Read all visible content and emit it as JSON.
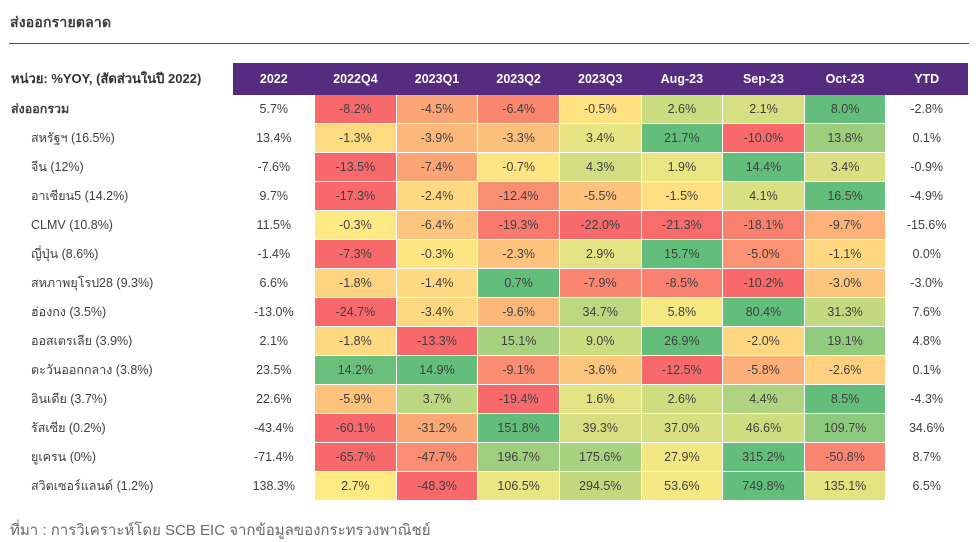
{
  "page": {
    "title": "ส่งออกรายตลาด",
    "source_note": "ที่มา : การวิเคราะห์โดย SCB EIC จากข้อมูลของกระทรวงพาณิชย์"
  },
  "colors": {
    "header_bg": "#552c80",
    "heat_min": "#f8696b",
    "heat_mid": "#ffeb84",
    "heat_max": "#63be7b",
    "text_dark": "#404040"
  },
  "chart_data": {
    "type": "heatmap",
    "title": "ส่งออกรายตลาด",
    "unit_label": "หน่วย: %YOY, (สัดส่วนในปี 2022)",
    "value_suffix": "%",
    "columns": [
      "2022",
      "2022Q4",
      "2023Q1",
      "2023Q2",
      "2023Q3",
      "Aug-23",
      "Sep-23",
      "Oct-23",
      "YTD"
    ],
    "heat_column_indexes": [
      1,
      2,
      3,
      4,
      5,
      6,
      7
    ],
    "color_scale": {
      "description": "row-wise 3-color scale on columns 2022Q4..Oct-23: row min = red, 0 = yellow, row max = green",
      "min_color": "#f8696b",
      "mid_color": "#ffeb84",
      "max_color": "#63be7b",
      "midpoint_value": 0
    },
    "rows": [
      {
        "label": "ส่งออกรวม",
        "bold": true,
        "values": [
          5.7,
          -8.2,
          -4.5,
          -6.4,
          -0.5,
          2.6,
          2.1,
          8.0,
          -2.8
        ]
      },
      {
        "label": "สหรัฐฯ (16.5%)",
        "bold": false,
        "values": [
          13.4,
          -1.3,
          -3.9,
          -3.3,
          3.4,
          21.7,
          -10.0,
          13.8,
          0.1
        ]
      },
      {
        "label": "จีน (12%)",
        "bold": false,
        "values": [
          -7.6,
          -13.5,
          -7.4,
          -0.7,
          4.3,
          1.9,
          14.4,
          3.4,
          -0.9
        ]
      },
      {
        "label": "อาเซียน5 (14.2%)",
        "bold": false,
        "values": [
          9.7,
          -17.3,
          -2.4,
          -12.4,
          -5.5,
          -1.5,
          4.1,
          16.5,
          -4.9
        ]
      },
      {
        "label": "CLMV (10.8%)",
        "bold": false,
        "values": [
          11.5,
          -0.3,
          -6.4,
          -19.3,
          -22.0,
          -21.3,
          -18.1,
          -9.7,
          -15.6
        ]
      },
      {
        "label": "ญี่ปุ่น (8.6%)",
        "bold": false,
        "values": [
          -1.4,
          -7.3,
          -0.3,
          -2.3,
          2.9,
          15.7,
          -5.0,
          -1.1,
          0.0
        ]
      },
      {
        "label": "สหภาพยุโรป28 (9.3%)",
        "bold": false,
        "values": [
          6.6,
          -1.8,
          -1.4,
          0.7,
          -7.9,
          -8.5,
          -10.2,
          -3.0,
          -3.0
        ]
      },
      {
        "label": "ฮ่องกง (3.5%)",
        "bold": false,
        "values": [
          -13.0,
          -24.7,
          -3.4,
          -9.6,
          34.7,
          5.8,
          80.4,
          31.3,
          7.6
        ]
      },
      {
        "label": "ออสเตรเลีย (3.9%)",
        "bold": false,
        "values": [
          2.1,
          -1.8,
          -13.3,
          15.1,
          9.0,
          26.9,
          -2.0,
          19.1,
          4.8
        ]
      },
      {
        "label": "ตะวันออกกลาง (3.8%)",
        "bold": false,
        "values": [
          23.5,
          14.2,
          14.9,
          -9.1,
          -3.6,
          -12.5,
          -5.8,
          -2.6,
          0.1
        ]
      },
      {
        "label": "อินเดีย (3.7%)",
        "bold": false,
        "values": [
          22.6,
          -5.9,
          3.7,
          -19.4,
          1.6,
          2.6,
          4.4,
          8.5,
          -4.3
        ]
      },
      {
        "label": "รัสเซีย (0.2%)",
        "bold": false,
        "values": [
          -43.4,
          -60.1,
          -31.2,
          151.8,
          39.3,
          37.0,
          46.6,
          109.7,
          34.6
        ]
      },
      {
        "label": "ยูเครน (0%)",
        "bold": false,
        "values": [
          -71.4,
          -65.7,
          -47.7,
          196.7,
          175.6,
          27.9,
          315.2,
          -50.8,
          8.7
        ]
      },
      {
        "label": "สวิตเซอร์แลนด์ (1.2%)",
        "bold": false,
        "values": [
          138.3,
          2.7,
          -48.3,
          106.5,
          294.5,
          53.6,
          749.8,
          135.1,
          6.5
        ]
      }
    ]
  }
}
